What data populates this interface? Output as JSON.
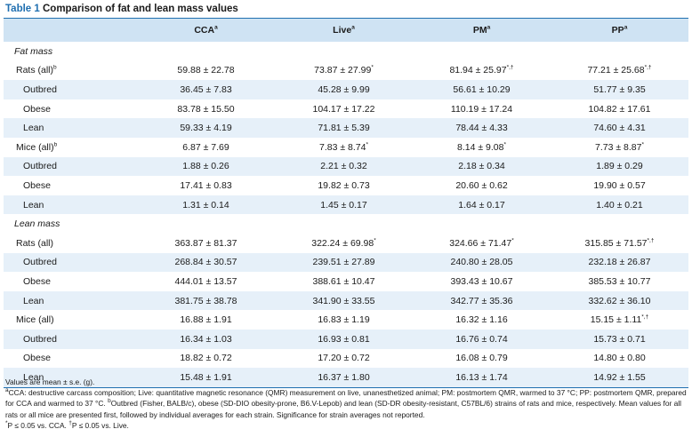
{
  "title": {
    "label": "Table 1",
    "text": "Comparison of fat and lean mass values"
  },
  "columns": [
    "CCA",
    "Live",
    "PM",
    "PP"
  ],
  "column_sup": "a",
  "rows": [
    {
      "kind": "section",
      "label": "Fat mass"
    },
    {
      "kind": "group",
      "label": "Rats (all)",
      "label_sup": "b",
      "values": [
        "59.88 ± 22.78",
        "73.87 ± 27.99",
        "81.94 ± 25.97",
        "77.21 ± 25.68"
      ],
      "sups": [
        "",
        "*",
        "*,†",
        "*,†"
      ]
    },
    {
      "kind": "sub",
      "label": "Outbred",
      "values": [
        "36.45 ± 7.83",
        "45.28 ± 9.99",
        "56.61 ± 10.29",
        "51.77 ± 9.35"
      ]
    },
    {
      "kind": "sub",
      "label": "Obese",
      "values": [
        "83.78 ± 15.50",
        "104.17 ± 17.22",
        "110.19 ± 17.24",
        "104.82 ± 17.61"
      ]
    },
    {
      "kind": "sub",
      "label": "Lean",
      "values": [
        "59.33 ± 4.19",
        "71.81 ± 5.39",
        "78.44 ± 4.33",
        "74.60 ± 4.31"
      ]
    },
    {
      "kind": "group",
      "label": "Mice (all)",
      "label_sup": "b",
      "values": [
        "6.87 ± 7.69",
        "7.83 ± 8.74",
        "8.14 ± 9.08",
        "7.73 ± 8.87"
      ],
      "sups": [
        "",
        "*",
        "*",
        "*"
      ]
    },
    {
      "kind": "sub",
      "label": "Outbred",
      "values": [
        "1.88 ± 0.26",
        "2.21 ± 0.32",
        "2.18 ± 0.34",
        "1.89 ± 0.29"
      ]
    },
    {
      "kind": "sub",
      "label": "Obese",
      "values": [
        "17.41 ± 0.83",
        "19.82 ± 0.73",
        "20.60 ± 0.62",
        "19.90 ± 0.57"
      ]
    },
    {
      "kind": "sub",
      "label": "Lean",
      "values": [
        "1.31 ± 0.14",
        "1.45 ± 0.17",
        "1.64 ± 0.17",
        "1.40 ± 0.21"
      ]
    },
    {
      "kind": "section",
      "label": "Lean mass"
    },
    {
      "kind": "group",
      "label": "Rats (all)",
      "label_sup": "",
      "values": [
        "363.87 ± 81.37",
        "322.24 ± 69.98",
        "324.66 ± 71.47",
        "315.85 ± 71.57"
      ],
      "sups": [
        "",
        "*",
        "*",
        "*,†"
      ]
    },
    {
      "kind": "sub",
      "label": "Outbred",
      "values": [
        "268.84 ± 30.57",
        "239.51 ± 27.89",
        "240.80 ± 28.05",
        "232.18 ± 26.87"
      ]
    },
    {
      "kind": "sub",
      "label": "Obese",
      "values": [
        "444.01 ± 13.57",
        "388.61 ± 10.47",
        "393.43 ± 10.67",
        "385.53 ± 10.77"
      ]
    },
    {
      "kind": "sub",
      "label": "Lean",
      "values": [
        "381.75 ± 38.78",
        "341.90 ± 33.55",
        "342.77 ± 35.36",
        "332.62 ± 36.10"
      ]
    },
    {
      "kind": "group",
      "label": "Mice (all)",
      "label_sup": "",
      "values": [
        "16.88 ± 1.91",
        "16.83 ± 1.19",
        "16.32 ± 1.16",
        "15.15 ± 1.11"
      ],
      "sups": [
        "",
        "",
        "",
        "*,†"
      ]
    },
    {
      "kind": "sub",
      "label": "Outbred",
      "values": [
        "16.34 ± 1.03",
        "16.93 ± 0.81",
        "16.76 ± 0.74",
        "15.73 ± 0.71"
      ]
    },
    {
      "kind": "sub",
      "label": "Obese",
      "values": [
        "18.82 ± 0.72",
        "17.20 ± 0.72",
        "16.08 ± 0.79",
        "14.80 ± 0.80"
      ]
    },
    {
      "kind": "sub",
      "label": "Lean",
      "values": [
        "15.48 ± 1.91",
        "16.37 ± 1.80",
        "16.13 ± 1.74",
        "14.92 ± 1.55"
      ]
    }
  ],
  "notes": [
    {
      "sup": "",
      "text": "Values are mean ± s.e. (g)."
    },
    {
      "sup": "a",
      "text": "CCA: destructive carcass composition; Live: quantitative magnetic resonance (QMR) measurement on live, unanesthetized animal; PM: postmortem QMR, warmed to 37 °C; PP: postmortem QMR, prepared for CCA and warmed to 37 °C. "
    },
    {
      "sup": "b",
      "text": "Outbred (Fisher, BALB/c), obese (SD-DIO obesity-prone, B6.V-Lepob) and lean (SD-DR obesity-resistant, C57BL/6) strains of rats and mice, respectively. Mean values for all rats or all mice are presented first, followed by individual averages for each strain. Significance for strain averages not reported."
    },
    {
      "sup": "*",
      "text": "P ≤ 0.05 vs. CCA. "
    },
    {
      "sup": "†",
      "text": "P ≤ 0.05 vs. Live."
    }
  ]
}
